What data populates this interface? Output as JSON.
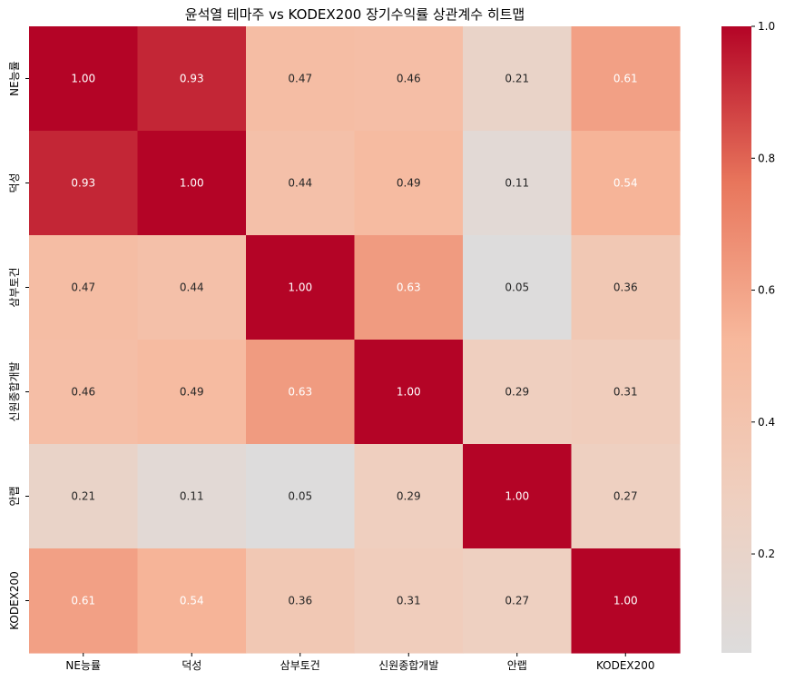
{
  "chart_data": {
    "type": "heatmap",
    "title": "윤석열 테마주 vs KODEX200 장기수익률 상관계수 히트맵",
    "xlabel": "",
    "ylabel": "",
    "x_categories": [
      "NE능률",
      "덕성",
      "삼부토건",
      "신원종합개발",
      "안랩",
      "KODEX200"
    ],
    "y_categories": [
      "NE능률",
      "덕성",
      "삼부토건",
      "신원종합개발",
      "안랩",
      "KODEX200"
    ],
    "values": [
      [
        1.0,
        0.93,
        0.47,
        0.46,
        0.21,
        0.61
      ],
      [
        0.93,
        1.0,
        0.44,
        0.49,
        0.11,
        0.54
      ],
      [
        0.47,
        0.44,
        1.0,
        0.63,
        0.05,
        0.36
      ],
      [
        0.46,
        0.49,
        0.63,
        1.0,
        0.29,
        0.31
      ],
      [
        0.21,
        0.11,
        0.05,
        0.29,
        1.0,
        0.27
      ],
      [
        0.61,
        0.54,
        0.36,
        0.31,
        0.27,
        1.0
      ]
    ],
    "value_labels": [
      [
        "1.00",
        "0.93",
        "0.47",
        "0.46",
        "0.21",
        "0.61"
      ],
      [
        "0.93",
        "1.00",
        "0.44",
        "0.49",
        "0.11",
        "0.54"
      ],
      [
        "0.47",
        "0.44",
        "1.00",
        "0.63",
        "0.05",
        "0.36"
      ],
      [
        "0.46",
        "0.49",
        "0.63",
        "1.00",
        "0.29",
        "0.31"
      ],
      [
        "0.21",
        "0.11",
        "0.05",
        "0.29",
        "1.00",
        "0.27"
      ],
      [
        "0.61",
        "0.54",
        "0.36",
        "0.31",
        "0.27",
        "1.00"
      ]
    ],
    "colormap": "coolwarm",
    "colorbar": {
      "range": [
        0.05,
        1.0
      ],
      "ticks": [
        "0.2",
        "0.4",
        "0.6",
        "0.8",
        "1.0"
      ]
    },
    "colors": {
      "low": "#dddcdc",
      "mid": "#f7b89c",
      "high": "#b40426"
    }
  }
}
